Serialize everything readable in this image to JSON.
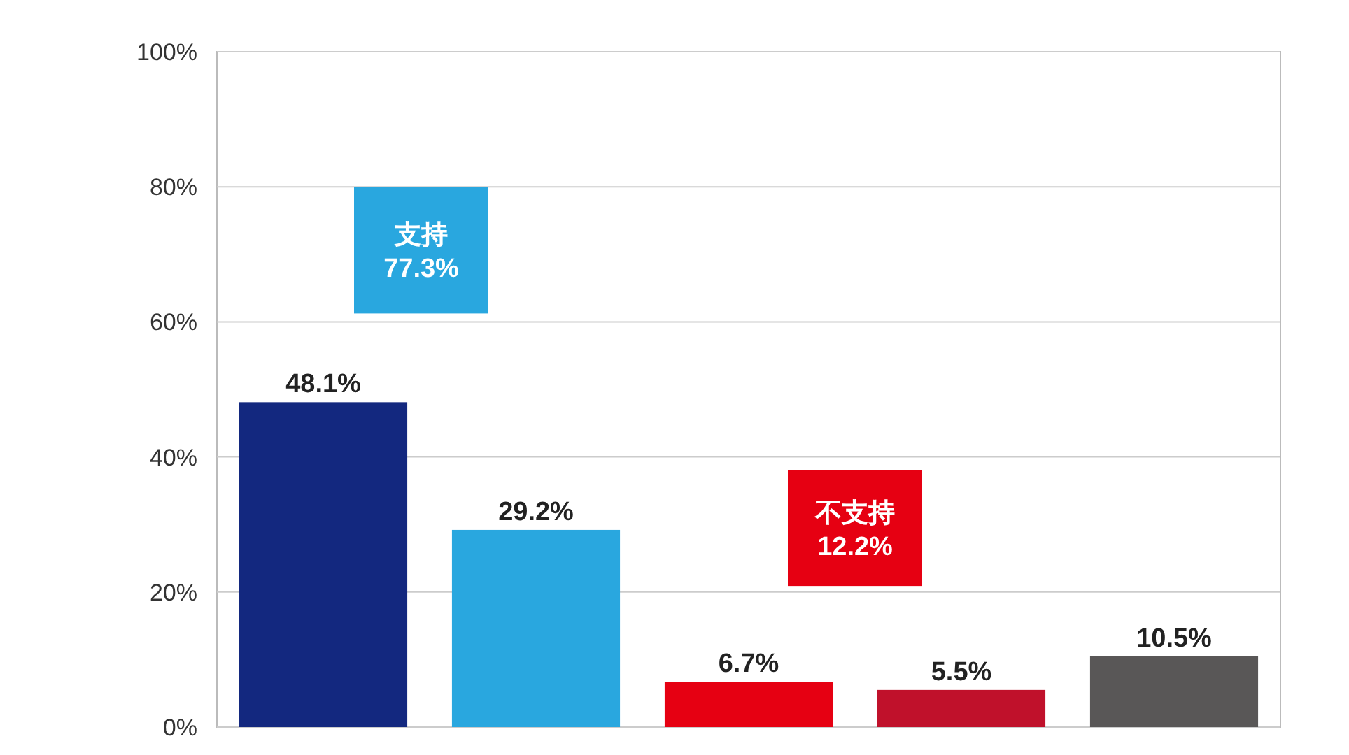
{
  "chart_data": {
    "type": "bar",
    "categories": [
      null,
      null,
      null,
      null,
      null
    ],
    "values": [
      48.1,
      29.2,
      6.7,
      5.5,
      10.5
    ],
    "colors": [
      "#13287f",
      "#29a7df",
      "#e60012",
      "#c0112b",
      "#595757"
    ],
    "value_labels": [
      "48.1%",
      "29.2%",
      "6.7%",
      "5.5%",
      "10.5%"
    ],
    "ylim": [
      0,
      100
    ],
    "yticks": [
      {
        "value": 0,
        "label": "0%"
      },
      {
        "value": 20,
        "label": "20%"
      },
      {
        "value": 40,
        "label": "40%"
      },
      {
        "value": 60,
        "label": "60%"
      },
      {
        "value": 80,
        "label": "80%"
      },
      {
        "value": 100,
        "label": "100%"
      }
    ],
    "grid": true,
    "annotations": [
      "支持\n77.3%",
      "不支持\n12.2%"
    ]
  }
}
